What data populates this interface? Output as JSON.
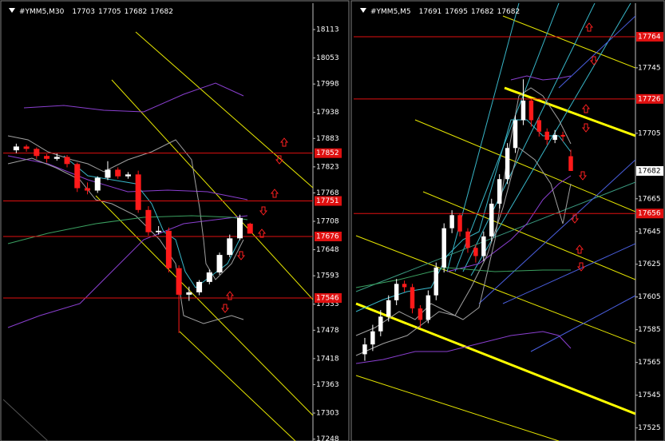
{
  "chart_data": [
    {
      "type": "candlestick",
      "title": "#YMM5,M30",
      "ohlc": [
        17703,
        17705,
        17682,
        17682
      ],
      "ylim": [
        17244,
        18167
      ],
      "yticks": [
        18113,
        18053,
        17998,
        17938,
        17883,
        17823,
        17768,
        17708,
        17648,
        17593,
        17533,
        17478,
        17418,
        17363,
        17303,
        17248
      ],
      "levels": [
        17852,
        17751,
        17676,
        17546
      ],
      "open": [
        17858,
        17866,
        17861,
        17846,
        17840,
        17844,
        17829,
        17778,
        17773,
        17800,
        17817,
        17803,
        17807,
        17732,
        17685,
        17688,
        17609,
        17553,
        17558,
        17580,
        17600,
        17637,
        17672,
        17703
      ],
      "high": [
        17872,
        17870,
        17864,
        17850,
        17851,
        17848,
        17832,
        17790,
        17803,
        17835,
        17822,
        17812,
        17815,
        17740,
        17698,
        17695,
        17615,
        17570,
        17584,
        17606,
        17642,
        17680,
        17722,
        17705
      ],
      "low": [
        17852,
        17855,
        17840,
        17832,
        17836,
        17822,
        17770,
        17765,
        17768,
        17795,
        17798,
        17798,
        17726,
        17678,
        17680,
        17600,
        17472,
        17540,
        17552,
        17575,
        17595,
        17632,
        17668,
        17682
      ],
      "close": [
        17866,
        17861,
        17846,
        17840,
        17844,
        17829,
        17778,
        17773,
        17800,
        17817,
        17803,
        17807,
        17732,
        17685,
        17688,
        17609,
        17553,
        17558,
        17580,
        17600,
        17637,
        17672,
        17715,
        17682
      ]
    },
    {
      "type": "candlestick",
      "title": "#YMM5,M5",
      "ohlc": [
        17691,
        17695,
        17682,
        17682
      ],
      "ylim": [
        17517,
        17784
      ],
      "yticks": [
        17745,
        17705,
        17665,
        17645,
        17625,
        17605,
        17585,
        17565,
        17545,
        17525
      ],
      "levels": [
        17764,
        17726,
        17656
      ],
      "last": 17682,
      "open": [
        17570,
        17576,
        17584,
        17593,
        17603,
        17613,
        17611,
        17598,
        17591,
        17606,
        17623,
        17647,
        17655,
        17645,
        17635,
        17630,
        17642,
        17662,
        17677,
        17696,
        17713,
        17725,
        17713,
        17706,
        17701,
        17704,
        17691
      ],
      "high": [
        17580,
        17588,
        17597,
        17606,
        17616,
        17615,
        17613,
        17600,
        17609,
        17626,
        17650,
        17658,
        17656,
        17647,
        17637,
        17645,
        17665,
        17680,
        17699,
        17716,
        17738,
        17726,
        17715,
        17708,
        17707,
        17706,
        17695
      ],
      "low": [
        17566,
        17572,
        17581,
        17590,
        17600,
        17608,
        17595,
        17586,
        17589,
        17603,
        17620,
        17644,
        17642,
        17632,
        17626,
        17627,
        17639,
        17659,
        17674,
        17693,
        17710,
        17709,
        17703,
        17698,
        17699,
        17700,
        17682
      ],
      "close": [
        17576,
        17584,
        17593,
        17603,
        17613,
        17611,
        17598,
        17591,
        17606,
        17623,
        17647,
        17655,
        17645,
        17635,
        17630,
        17642,
        17662,
        17677,
        17696,
        17713,
        17725,
        17713,
        17706,
        17701,
        17704,
        17703,
        17682
      ]
    }
  ]
}
